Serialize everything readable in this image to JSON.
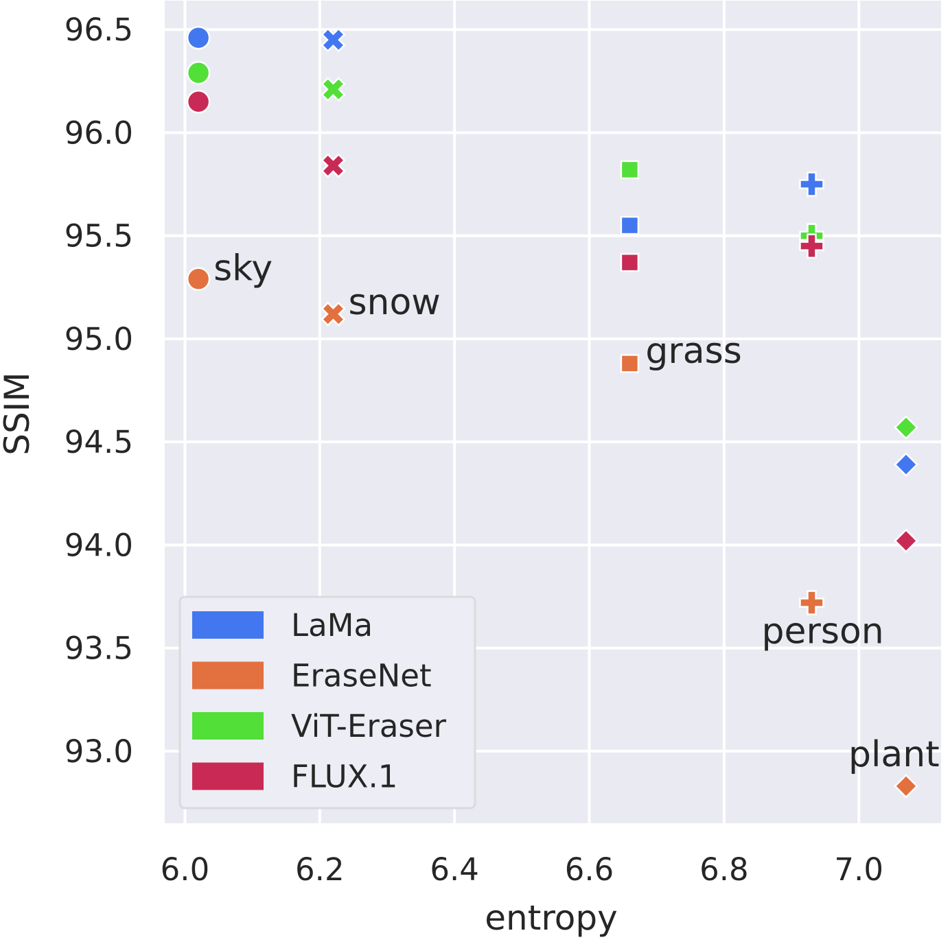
{
  "chart_data": {
    "type": "scatter",
    "title": "",
    "xlabel": "entropy",
    "ylabel": "SSIM",
    "xlim": [
      5.97,
      7.122
    ],
    "ylim": [
      92.65,
      96.64
    ],
    "xticks": [
      6.0,
      6.2,
      6.4,
      6.6,
      6.8,
      7.0
    ],
    "xtick_labels": [
      "6.0",
      "6.2",
      "6.4",
      "6.6",
      "6.8",
      "7.0"
    ],
    "yticks": [
      93.0,
      93.5,
      94.0,
      94.5,
      95.0,
      95.5,
      96.0,
      96.5
    ],
    "ytick_labels": [
      "93.0",
      "93.5",
      "94.0",
      "94.5",
      "95.0",
      "95.5",
      "96.0",
      "96.5"
    ],
    "grid": true,
    "legend_position": "lower-left",
    "categories": [
      {
        "name": "sky",
        "entropy": 6.02,
        "marker": "circle"
      },
      {
        "name": "snow",
        "entropy": 6.22,
        "marker": "x"
      },
      {
        "name": "grass",
        "entropy": 6.66,
        "marker": "square"
      },
      {
        "name": "person",
        "entropy": 6.93,
        "marker": "plus"
      },
      {
        "name": "plant",
        "entropy": 7.07,
        "marker": "diamond"
      }
    ],
    "series": [
      {
        "name": "LaMa",
        "color": "#4277f0",
        "values": [
          96.46,
          96.45,
          95.55,
          95.75,
          94.39
        ]
      },
      {
        "name": "EraseNet",
        "color": "#e3703f",
        "values": [
          95.29,
          95.12,
          94.88,
          93.72,
          92.83
        ]
      },
      {
        "name": "ViT-Eraser",
        "color": "#51df38",
        "values": [
          96.29,
          96.21,
          95.82,
          95.5,
          94.57
        ]
      },
      {
        "name": "FLUX.1",
        "color": "#c92a55",
        "values": [
          96.15,
          95.84,
          95.37,
          95.45,
          94.02
        ]
      }
    ],
    "annotations": [
      {
        "text": "sky",
        "series": "EraseNet",
        "category": "sky"
      },
      {
        "text": "snow",
        "series": "EraseNet",
        "category": "snow"
      },
      {
        "text": "grass",
        "series": "EraseNet",
        "category": "grass"
      },
      {
        "text": "person",
        "series": "EraseNet",
        "category": "person"
      },
      {
        "text": "plant",
        "series": "EraseNet",
        "category": "plant"
      }
    ]
  }
}
